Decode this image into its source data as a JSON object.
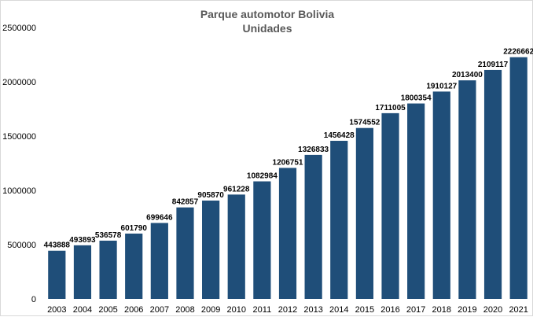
{
  "chart_data": {
    "type": "bar",
    "title": "Parque automotor Bolivia",
    "subtitle": "Unidades",
    "xlabel": "",
    "ylabel": "",
    "categories": [
      "2003",
      "2004",
      "2005",
      "2006",
      "2007",
      "2008",
      "2009",
      "2010",
      "2011",
      "2012",
      "2013",
      "2014",
      "2015",
      "2016",
      "2017",
      "2018",
      "2019",
      "2020",
      "2021"
    ],
    "values": [
      443888,
      493893,
      536578,
      601790,
      699646,
      842857,
      905870,
      961228,
      1082984,
      1206751,
      1326833,
      1456428,
      1574552,
      1711005,
      1800354,
      1910127,
      2013400,
      2109117,
      2226662
    ],
    "data_labels": [
      "443888",
      "493893",
      "536578",
      "601790",
      "699646",
      "842857",
      "905870",
      "961228",
      "1082984",
      "1206751",
      "1326833",
      "1456428",
      "1574552",
      "1711005",
      "1800354",
      "1910127",
      "2013400",
      "2109117",
      "2226662"
    ],
    "y_ticks": [
      0,
      500000,
      1000000,
      1500000,
      2000000,
      2500000
    ],
    "y_tick_labels": [
      "0",
      "500000",
      "1000000",
      "1500000",
      "2000000",
      "2500000"
    ],
    "ylim": [
      0,
      2500000
    ],
    "grid": false,
    "legend": "none",
    "bar_color": "#1f4e79"
  }
}
